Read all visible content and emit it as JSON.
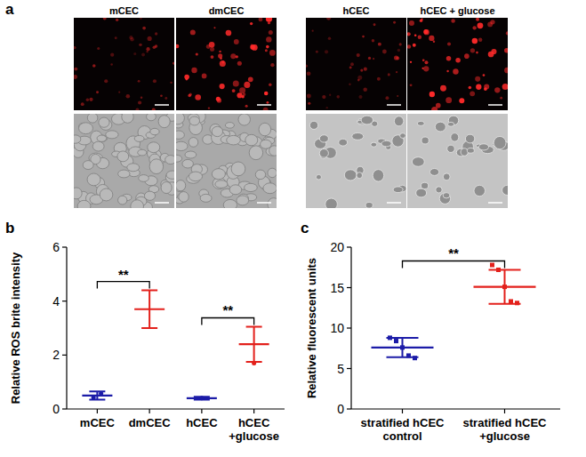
{
  "panel_labels": [
    "a",
    "b",
    "c"
  ],
  "images": {
    "labels": [
      "mCEC",
      "dmCEC",
      "hCEC",
      "hCEC + glucose"
    ]
  },
  "chart_data": [
    {
      "type": "dot_plot",
      "y_label": "Relative ROS brite intensity",
      "categories": [
        "mCEC",
        "dmCEC",
        "hCEC",
        "hCEC\n+glucose"
      ],
      "values": [
        0.5,
        3.7,
        0.4,
        2.4
      ],
      "errors": [
        0.15,
        0.7,
        0.05,
        0.65
      ],
      "points": [
        [
          0.42,
          0.58
        ],
        [],
        [
          0.4
        ],
        [
          1.7
        ]
      ],
      "colors": [
        "#1c1ca8",
        "#e3211c",
        "#1c1ca8",
        "#e3211c"
      ],
      "marker": "circle",
      "ylim": [
        0,
        6
      ],
      "yticks": [
        0,
        2,
        4,
        6
      ],
      "annotations": [
        {
          "text": "**",
          "from": 0,
          "to": 1
        },
        {
          "text": "**",
          "from": 2,
          "to": 3
        }
      ]
    },
    {
      "type": "dot_plot",
      "y_label": "Relative fluorescent units",
      "categories": [
        "stratified hCEC\ncontrol",
        "stratified hCEC\n+glucose"
      ],
      "values": [
        7.6,
        15.1
      ],
      "errors": [
        1.2,
        2.1
      ],
      "points": [
        [
          8.8,
          8.4,
          7.6,
          6.6,
          6.3
        ],
        [
          17.8,
          17.2,
          15.1,
          13.3,
          13.1
        ]
      ],
      "colors": [
        "#1c1ca8",
        "#e3211c"
      ],
      "marker": "square",
      "ylim": [
        0,
        20
      ],
      "yticks": [
        0,
        5,
        10,
        15,
        20
      ],
      "annotations": [
        {
          "text": "**",
          "from": 0,
          "to": 1
        }
      ]
    }
  ]
}
